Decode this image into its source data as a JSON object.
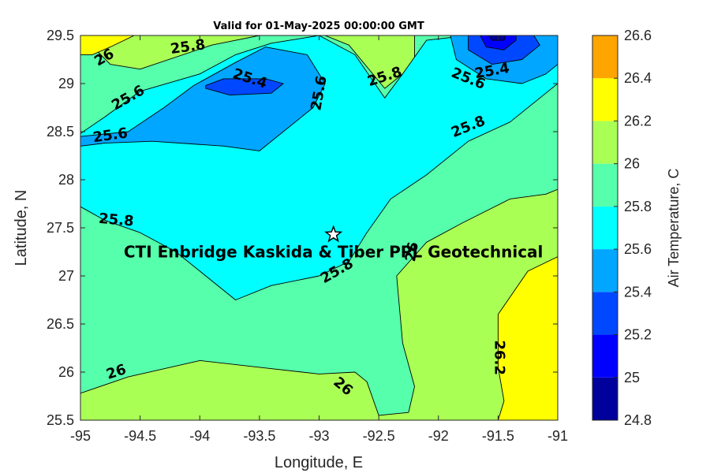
{
  "chart_data": {
    "type": "contourf",
    "title": "Valid for 01-May-2025 00:00:00 GMT",
    "xlabel": "Longitude, E",
    "ylabel": "Latitude, N",
    "xlim": [
      -95,
      -91
    ],
    "ylim": [
      25.5,
      29.5
    ],
    "x_ticks": [
      -95,
      -94.5,
      -94,
      -93.5,
      -93,
      -92.5,
      -92,
      -91.5,
      -91
    ],
    "x_tick_labels": [
      "-95",
      "-94.5",
      "-94",
      "-93.5",
      "-93",
      "-92.5",
      "-92",
      "-91.5",
      "-91"
    ],
    "y_ticks": [
      25.5,
      26,
      26.5,
      27,
      27.5,
      28,
      28.5,
      29,
      29.5
    ],
    "y_tick_labels": [
      "25.5",
      "26",
      "26.5",
      "27",
      "27.5",
      "28",
      "28.5",
      "29",
      "29.5"
    ],
    "grid": false,
    "colorbar": {
      "label": "Air Temperature, C",
      "levels": [
        24.8,
        25,
        25.2,
        25.4,
        25.6,
        25.8,
        26,
        26.2,
        26.4,
        26.6
      ],
      "tick_labels": [
        "24.8",
        "25",
        "25.2",
        "25.4",
        "25.6",
        "25.8",
        "26",
        "26.2",
        "26.4",
        "26.6"
      ],
      "colors": [
        "#00009c",
        "#0000ff",
        "#0048ff",
        "#00a6ff",
        "#00ffff",
        "#55ffab",
        "#aaff55",
        "#ffff00",
        "#ffa500",
        "#ff5a00"
      ]
    },
    "regions": [
      {
        "level": 26.0,
        "color": "#aaff55",
        "polygon": [
          [
            -95,
            25.5
          ],
          [
            -91,
            25.5
          ],
          [
            -91,
            29.5
          ],
          [
            -95,
            29.5
          ]
        ]
      },
      {
        "level": 25.8,
        "color": "#55ffab",
        "polygon": [
          [
            -95,
            25.78
          ],
          [
            -94.6,
            25.95
          ],
          [
            -94,
            26.12
          ],
          [
            -93.5,
            26.05
          ],
          [
            -93,
            25.98
          ],
          [
            -92.7,
            26.0
          ],
          [
            -92.6,
            25.9
          ],
          [
            -92.5,
            25.55
          ],
          [
            -92.25,
            25.58
          ],
          [
            -92.2,
            25.85
          ],
          [
            -92.3,
            26.3
          ],
          [
            -92.35,
            27.0
          ],
          [
            -92.1,
            27.35
          ],
          [
            -91.8,
            27.55
          ],
          [
            -91.4,
            27.8
          ],
          [
            -91.1,
            27.85
          ],
          [
            -91,
            27.9
          ],
          [
            -91,
            29.5
          ],
          [
            -92.2,
            29.5
          ],
          [
            -92.2,
            29.2
          ],
          [
            -92.45,
            28.95
          ],
          [
            -92.75,
            29.4
          ],
          [
            -92.95,
            29.5
          ],
          [
            -93.5,
            29.5
          ],
          [
            -93.9,
            29.4
          ],
          [
            -94.5,
            29.15
          ],
          [
            -94.75,
            29.2
          ],
          [
            -94.95,
            29.45
          ],
          [
            -95,
            29.4
          ]
        ]
      },
      {
        "level": 25.6,
        "color": "#00ffff",
        "polygon": [
          [
            -95,
            28.35
          ],
          [
            -95,
            27.72
          ],
          [
            -94.8,
            27.58
          ],
          [
            -94.5,
            27.45
          ],
          [
            -94.2,
            27.25
          ],
          [
            -93.9,
            26.95
          ],
          [
            -93.7,
            26.75
          ],
          [
            -93.4,
            26.9
          ],
          [
            -93,
            27.0
          ],
          [
            -92.75,
            27.15
          ],
          [
            -92.6,
            27.45
          ],
          [
            -92.4,
            27.8
          ],
          [
            -92.1,
            28.05
          ],
          [
            -91.75,
            28.4
          ],
          [
            -91.4,
            28.6
          ],
          [
            -91.1,
            28.9
          ],
          [
            -91,
            29.0
          ],
          [
            -91,
            29.45
          ],
          [
            -91.4,
            29.5
          ],
          [
            -91.75,
            29.5
          ],
          [
            -92.1,
            29.45
          ],
          [
            -92.3,
            29.1
          ],
          [
            -92.45,
            28.85
          ],
          [
            -92.7,
            29.3
          ],
          [
            -93,
            29.5
          ],
          [
            -93.4,
            29.42
          ],
          [
            -93.7,
            29.3
          ],
          [
            -94.0,
            29.1
          ],
          [
            -94.5,
            28.92
          ],
          [
            -94.8,
            28.65
          ],
          [
            -95,
            28.48
          ]
        ]
      },
      {
        "level": 25.4,
        "color": "#00a6ff",
        "polygon": [
          [
            -95,
            28.45
          ],
          [
            -94.6,
            28.5
          ],
          [
            -94.3,
            28.75
          ],
          [
            -94.05,
            28.98
          ],
          [
            -93.7,
            29.22
          ],
          [
            -93.45,
            29.38
          ],
          [
            -93.1,
            29.3
          ],
          [
            -92.95,
            29.0
          ],
          [
            -93.05,
            28.75
          ],
          [
            -93.3,
            28.5
          ],
          [
            -93.5,
            28.3
          ],
          [
            -93.8,
            28.35
          ],
          [
            -94.4,
            28.4
          ],
          [
            -94.8,
            28.38
          ],
          [
            -95,
            28.35
          ]
        ]
      },
      {
        "level": 25.4,
        "color": "#00a6ff",
        "polygon": [
          [
            -91.9,
            29.5
          ],
          [
            -91.85,
            29.25
          ],
          [
            -91.6,
            29.05
          ],
          [
            -91.3,
            29.0
          ],
          [
            -91.1,
            29.1
          ],
          [
            -91,
            29.2
          ],
          [
            -91,
            29.5
          ]
        ]
      },
      {
        "level": 25.2,
        "color": "#0048ff",
        "polygon": [
          [
            -93.95,
            28.98
          ],
          [
            -93.8,
            29.05
          ],
          [
            -93.45,
            29.05
          ],
          [
            -93.3,
            29.0
          ],
          [
            -93.4,
            28.9
          ],
          [
            -93.75,
            28.88
          ],
          [
            -93.95,
            28.95
          ]
        ]
      },
      {
        "level": 25.2,
        "color": "#0048ff",
        "polygon": [
          [
            -91.75,
            29.5
          ],
          [
            -91.75,
            29.35
          ],
          [
            -91.55,
            29.2
          ],
          [
            -91.3,
            29.25
          ],
          [
            -91.15,
            29.4
          ],
          [
            -91.2,
            29.5
          ]
        ]
      },
      {
        "level": 25.0,
        "color": "#0000ff",
        "polygon": [
          [
            -91.65,
            29.5
          ],
          [
            -91.6,
            29.38
          ],
          [
            -91.45,
            29.35
          ],
          [
            -91.35,
            29.45
          ],
          [
            -91.35,
            29.5
          ]
        ]
      },
      {
        "level": 24.8,
        "color": "#00009c",
        "polygon": [
          [
            -91.58,
            29.5
          ],
          [
            -91.55,
            29.45
          ],
          [
            -91.45,
            29.45
          ],
          [
            -91.44,
            29.5
          ]
        ]
      },
      {
        "level": 26.2,
        "color": "#ffff00",
        "polygon": [
          [
            -91,
            25.5
          ],
          [
            -91,
            27.2
          ],
          [
            -91.25,
            27.05
          ],
          [
            -91.5,
            26.6
          ],
          [
            -91.5,
            26.05
          ],
          [
            -91.45,
            25.7
          ],
          [
            -91.5,
            25.5
          ]
        ]
      },
      {
        "level": 26.2,
        "color": "#ffff00",
        "polygon": [
          [
            -95,
            29.3
          ],
          [
            -95,
            29.5
          ],
          [
            -94.55,
            29.5
          ],
          [
            -94.75,
            29.38
          ],
          [
            -94.9,
            29.3
          ]
        ]
      }
    ],
    "contour_labels": [
      {
        "text": "25.8",
        "x": -94.1,
        "y": 29.38,
        "angle": -8
      },
      {
        "text": "26",
        "x": -94.8,
        "y": 29.27,
        "angle": -30
      },
      {
        "text": "25.4",
        "x": -93.58,
        "y": 29.05,
        "angle": 18
      },
      {
        "text": "25.6",
        "x": -94.6,
        "y": 28.85,
        "angle": -30
      },
      {
        "text": "25.6",
        "x": -93.0,
        "y": 28.9,
        "angle": -80
      },
      {
        "text": "25.8",
        "x": -92.45,
        "y": 29.07,
        "angle": -18
      },
      {
        "text": "25.4",
        "x": -91.55,
        "y": 29.13,
        "angle": -10
      },
      {
        "text": "25.6",
        "x": -91.75,
        "y": 29.05,
        "angle": 22
      },
      {
        "text": "25.8",
        "x": -91.75,
        "y": 28.55,
        "angle": -22
      },
      {
        "text": "25.6",
        "x": -94.75,
        "y": 28.46,
        "angle": -8
      },
      {
        "text": "25.8",
        "x": -94.7,
        "y": 27.58,
        "angle": 5
      },
      {
        "text": "25.8",
        "x": -92.85,
        "y": 27.05,
        "angle": -30
      },
      {
        "text": "26",
        "x": -92.22,
        "y": 27.25,
        "angle": -80
      },
      {
        "text": "26",
        "x": -94.7,
        "y": 26.0,
        "angle": -18
      },
      {
        "text": "26",
        "x": -92.8,
        "y": 25.85,
        "angle": 40
      },
      {
        "text": "26.2",
        "x": -91.49,
        "y": 26.15,
        "angle": 90
      }
    ],
    "marker": {
      "symbol": "star",
      "x": -92.88,
      "y": 27.43
    },
    "annotation": {
      "text": "CTI Enbridge  Kaskida & Tiber PPL Geotechnical",
      "x": -92.88,
      "y": 27.25
    }
  }
}
